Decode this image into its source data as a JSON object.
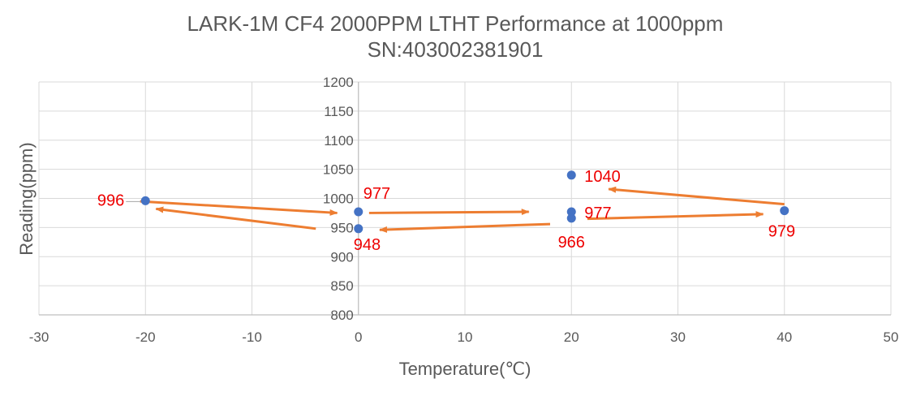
{
  "chart_data": {
    "type": "scatter",
    "title": "LARK-1M CF4 2000PPM LTHT Performance at 1000ppm",
    "subtitle": "SN:403002381901",
    "xlabel": "Temperature(℃)",
    "ylabel": "Reading(ppm)",
    "xlim": [
      -30,
      50
    ],
    "ylim": [
      800,
      1200
    ],
    "x_ticks": [
      "-30",
      "-20",
      "-10",
      "0",
      "10",
      "20",
      "30",
      "40",
      "50"
    ],
    "y_ticks": [
      "800",
      "850",
      "900",
      "950",
      "1000",
      "1050",
      "1100",
      "1150",
      "1200"
    ],
    "grid": true,
    "legend": "none",
    "point_color": "#4472c4",
    "arrow_color": "#ed7d31",
    "label_color": "#ee0000",
    "series": [
      {
        "points": [
          {
            "x": -20,
            "y": 996,
            "label": "996"
          },
          {
            "x": 0,
            "y": 977,
            "label": "977"
          },
          {
            "x": 0,
            "y": 948,
            "label": "948"
          },
          {
            "x": 20,
            "y": 977,
            "label": "977"
          },
          {
            "x": 20,
            "y": 966,
            "label": "966"
          },
          {
            "x": 20,
            "y": 1040,
            "label": "1040"
          },
          {
            "x": 40,
            "y": 979,
            "label": "979"
          }
        ]
      }
    ],
    "annotations": {
      "arrows": [
        {
          "from": [
            -20.5,
            995
          ],
          "to": [
            -2,
            975
          ]
        },
        {
          "from": [
            1,
            975
          ],
          "to": [
            16,
            977
          ]
        },
        {
          "from": [
            40,
            990
          ],
          "to": [
            23.5,
            1016
          ]
        },
        {
          "from": [
            21.5,
            965
          ],
          "to": [
            38,
            973
          ]
        },
        {
          "from": [
            18,
            956
          ],
          "to": [
            2,
            946
          ]
        },
        {
          "from": [
            -4,
            948
          ],
          "to": [
            -19,
            982
          ]
        }
      ]
    }
  }
}
